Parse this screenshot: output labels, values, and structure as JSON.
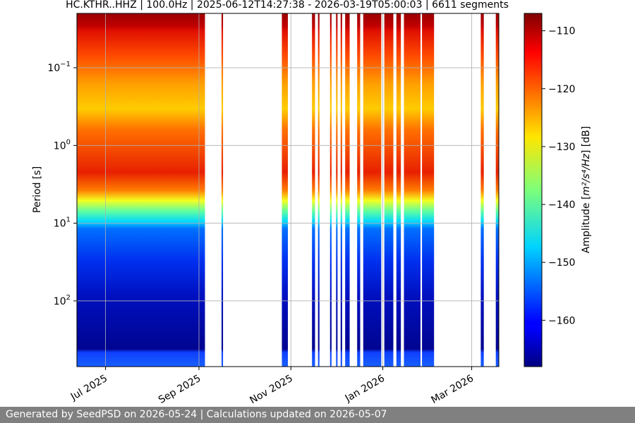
{
  "chart_data": {
    "type": "heatmap",
    "title": "HC.KTHR..HHZ | 100.0Hz | 2025-06-12T14:27:38 - 2026-03-19T05:00:03 | 6611 segments",
    "xlabel": "",
    "ylabel": "Period [s]",
    "x_tick_labels": [
      "Jul 2025",
      "Sep 2025",
      "Nov 2025",
      "Jan 2026",
      "Mar 2026"
    ],
    "x_tick_dates": [
      "2025-07-01",
      "2025-09-01",
      "2025-11-01",
      "2026-01-01",
      "2026-03-01"
    ],
    "xlim": [
      "2025-06-12",
      "2026-03-19"
    ],
    "y_scale": "log",
    "y_inverted": true,
    "ylim": [
      0.02,
      700
    ],
    "y_ticks": [
      0.1,
      1,
      10,
      100
    ],
    "y_tick_labels": [
      {
        "base": "10",
        "exp": "−1"
      },
      {
        "base": "10",
        "exp": "0"
      },
      {
        "base": "10",
        "exp": "1"
      },
      {
        "base": "10",
        "exp": "2"
      }
    ],
    "grid": true,
    "colorbar": {
      "label_prefix": "Amplitude [",
      "label_math": "m²/s⁴/Hz",
      "label_suffix": "] [dB]",
      "range": [
        -168,
        -107
      ],
      "ticks": [
        -110,
        -120,
        -130,
        -140,
        -150,
        -160
      ],
      "tick_labels": [
        "−110",
        "−120",
        "−130",
        "−140",
        "−150",
        "−160"
      ],
      "colormap": "jet"
    },
    "data_intervals": [
      [
        "2025-06-12",
        "2025-09-05"
      ],
      [
        "2025-09-16",
        "2025-09-17"
      ],
      [
        "2025-10-26",
        "2025-10-30"
      ],
      [
        "2025-11-15",
        "2025-11-17"
      ],
      [
        "2025-11-19",
        "2025-11-20"
      ],
      [
        "2025-11-27",
        "2025-11-28"
      ],
      [
        "2025-12-01",
        "2025-12-02"
      ],
      [
        "2025-12-04",
        "2025-12-05"
      ],
      [
        "2025-12-07",
        "2025-12-10"
      ],
      [
        "2025-12-15",
        "2025-12-17"
      ],
      [
        "2025-12-19",
        "2025-12-31"
      ],
      [
        "2026-01-02",
        "2026-01-08"
      ],
      [
        "2026-01-10",
        "2026-01-13"
      ],
      [
        "2026-01-15",
        "2026-01-26"
      ],
      [
        "2026-01-27",
        "2026-02-04"
      ],
      [
        "2026-03-07",
        "2026-03-09"
      ],
      [
        "2026-03-17",
        "2026-03-19"
      ]
    ]
  },
  "footer": {
    "text": "Generated by SeedPSD on 2026-05-24 | Calculations updated on 2026-05-07"
  }
}
